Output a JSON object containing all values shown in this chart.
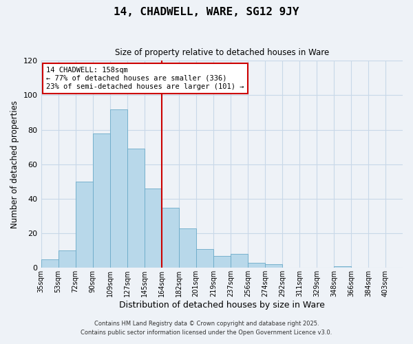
{
  "title": "14, CHADWELL, WARE, SG12 9JY",
  "subtitle": "Size of property relative to detached houses in Ware",
  "xlabel": "Distribution of detached houses by size in Ware",
  "ylabel": "Number of detached properties",
  "bar_values": [
    5,
    10,
    50,
    78,
    92,
    69,
    46,
    35,
    23,
    11,
    7,
    8,
    3,
    2,
    0,
    0,
    0,
    1,
    0,
    0
  ],
  "x_tick_labels": [
    "35sqm",
    "53sqm",
    "72sqm",
    "90sqm",
    "109sqm",
    "127sqm",
    "145sqm",
    "164sqm",
    "182sqm",
    "201sqm",
    "219sqm",
    "237sqm",
    "256sqm",
    "274sqm",
    "292sqm",
    "311sqm",
    "329sqm",
    "348sqm",
    "366sqm",
    "384sqm",
    "403sqm"
  ],
  "bar_color": "#b8d8ea",
  "bar_edge_color": "#6aaac8",
  "vline_position": 7,
  "vline_color": "#cc0000",
  "ylim": [
    0,
    120
  ],
  "yticks": [
    0,
    20,
    40,
    60,
    80,
    100,
    120
  ],
  "annotation_title": "14 CHADWELL: 158sqm",
  "annotation_line1": "← 77% of detached houses are smaller (336)",
  "annotation_line2": "23% of semi-detached houses are larger (101) →",
  "annotation_box_color": "#ffffff",
  "annotation_box_edge": "#cc0000",
  "grid_color": "#c8d8e8",
  "background_color": "#eef2f7",
  "plot_bg_color": "#eef2f7",
  "footnote1": "Contains HM Land Registry data © Crown copyright and database right 2025.",
  "footnote2": "Contains public sector information licensed under the Open Government Licence v3.0."
}
